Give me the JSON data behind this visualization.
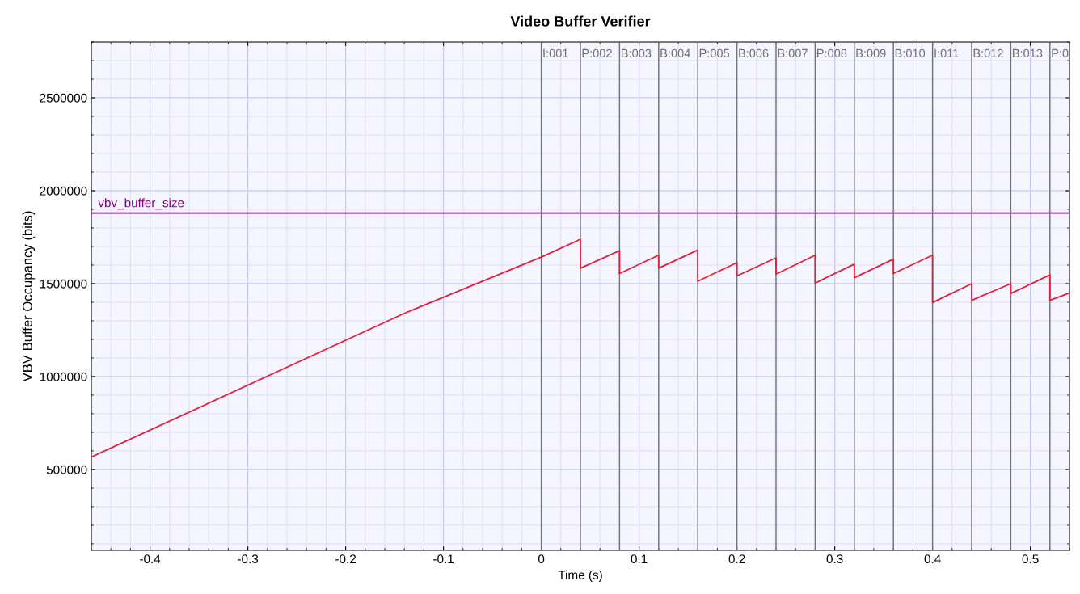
{
  "chart_data": {
    "type": "line",
    "title": "Video Buffer Verifier",
    "xlabel": "Time (s)",
    "ylabel": "VBV Buffer Occupancy (bits)",
    "x": [
      -0.46,
      -0.14,
      0,
      0.04,
      0.04,
      0.08,
      0.08,
      0.12,
      0.12,
      0.16,
      0.16,
      0.2,
      0.2,
      0.24,
      0.24,
      0.28,
      0.28,
      0.32,
      0.32,
      0.36,
      0.36,
      0.4,
      0.4,
      0.44,
      0.44,
      0.48,
      0.48,
      0.52,
      0.52,
      0.54
    ],
    "series": [
      {
        "color": "#e0203c",
        "values": [
          567000,
          1340000,
          1643000,
          1739000,
          1583000,
          1677000,
          1554000,
          1653000,
          1583000,
          1681000,
          1513000,
          1613000,
          1541000,
          1639000,
          1551000,
          1653000,
          1503000,
          1605000,
          1532000,
          1632000,
          1554000,
          1653000,
          1398000,
          1500000,
          1410000,
          1500000,
          1447000,
          1547000,
          1410000,
          1450000
        ]
      }
    ],
    "xlim": [
      -0.46,
      0.54
    ],
    "ylim": [
      65000,
      2800000
    ],
    "xticks": [
      -0.4,
      -0.3,
      -0.2,
      -0.1,
      0,
      0.1,
      0.2,
      0.3,
      0.4,
      0.5
    ],
    "yticks": [
      500000,
      1000000,
      1500000,
      2000000,
      2500000
    ],
    "grid": true,
    "marker": "none",
    "line_style": "solid",
    "ref_lines": [
      {
        "axis": "y",
        "value": 1880000,
        "label": "vbv_buffer_size",
        "color": "#800080"
      },
      {
        "axis": "x",
        "value": 0,
        "color": "#707070"
      },
      {
        "axis": "x",
        "value": 0.04,
        "color": "#707070"
      },
      {
        "axis": "x",
        "value": 0.08,
        "color": "#707070"
      },
      {
        "axis": "x",
        "value": 0.12,
        "color": "#707070"
      },
      {
        "axis": "x",
        "value": 0.16,
        "color": "#707070"
      },
      {
        "axis": "x",
        "value": 0.2,
        "color": "#707070"
      },
      {
        "axis": "x",
        "value": 0.24,
        "color": "#707070"
      },
      {
        "axis": "x",
        "value": 0.28,
        "color": "#707070"
      },
      {
        "axis": "x",
        "value": 0.32,
        "color": "#707070"
      },
      {
        "axis": "x",
        "value": 0.36,
        "color": "#707070"
      },
      {
        "axis": "x",
        "value": 0.4,
        "color": "#707070"
      },
      {
        "axis": "x",
        "value": 0.44,
        "color": "#707070"
      },
      {
        "axis": "x",
        "value": 0.48,
        "color": "#707070"
      },
      {
        "axis": "x",
        "value": 0.52,
        "color": "#707070"
      }
    ],
    "annotations": [
      {
        "text": "I:001",
        "x": 0
      },
      {
        "text": "P:002",
        "x": 0.04
      },
      {
        "text": "B:003",
        "x": 0.08
      },
      {
        "text": "B:004",
        "x": 0.12
      },
      {
        "text": "P:005",
        "x": 0.16
      },
      {
        "text": "B:006",
        "x": 0.2
      },
      {
        "text": "B:007",
        "x": 0.24
      },
      {
        "text": "P:008",
        "x": 0.28
      },
      {
        "text": "B:009",
        "x": 0.32
      },
      {
        "text": "B:010",
        "x": 0.36
      },
      {
        "text": "I:011",
        "x": 0.4
      },
      {
        "text": "B:012",
        "x": 0.44
      },
      {
        "text": "B:013",
        "x": 0.48
      },
      {
        "text": "P:0",
        "x": 0.52
      }
    ]
  }
}
